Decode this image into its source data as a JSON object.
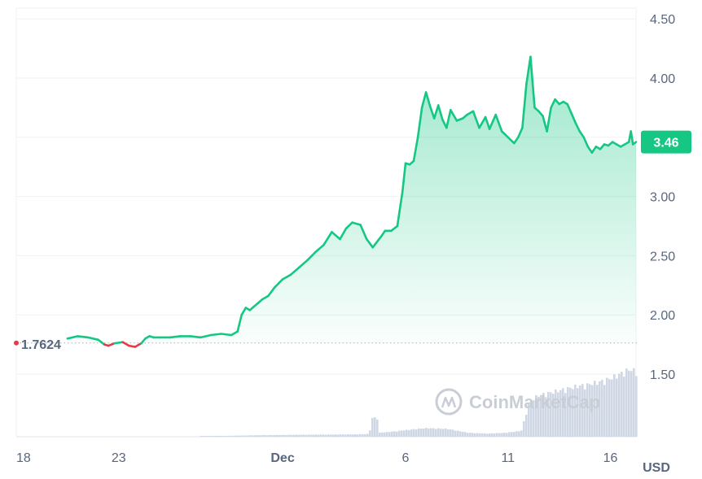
{
  "chart_data": {
    "type": "area",
    "unit_label": "USD",
    "current_price_label": "3.46",
    "start_price_label": "1.7624",
    "start_price": 1.7624,
    "ylim": [
      1.0,
      4.55
    ],
    "y_ticks": [
      "4.50",
      "4.00",
      "3.50",
      "3.00",
      "2.50",
      "2.00",
      "1.50"
    ],
    "y_tick_values": [
      4.5,
      4.0,
      3.5,
      3.0,
      2.5,
      2.0,
      1.5
    ],
    "x_ticks": [
      "18",
      "23",
      "Dec",
      "6",
      "11",
      "16"
    ],
    "x_tick_days": [
      0,
      5,
      13,
      19,
      24,
      29
    ],
    "xlim_days": [
      0,
      30.25
    ],
    "colors": {
      "up": "#16c784",
      "down": "#ea3943",
      "volume": "#cfd6e4",
      "grid": "#eff2f5"
    },
    "watermark": "CoinMarketCap",
    "price_series": {
      "x_days": [
        2.5,
        3.0,
        3.5,
        4.0,
        4.3,
        4.5,
        4.8,
        5.2,
        5.5,
        5.8,
        6.1,
        6.3,
        6.5,
        6.7,
        7.0,
        7.5,
        8.0,
        8.5,
        9.0,
        9.5,
        10.0,
        10.5,
        10.8,
        11.0,
        11.2,
        11.4,
        11.6,
        11.8,
        12.0,
        12.3,
        12.6,
        13.0,
        13.4,
        13.8,
        14.2,
        14.6,
        15.0,
        15.4,
        15.8,
        16.1,
        16.4,
        16.8,
        17.1,
        17.4,
        17.8,
        18.0,
        18.3,
        18.6,
        18.85,
        19.0,
        19.2,
        19.4,
        19.6,
        19.8,
        20.0,
        20.2,
        20.4,
        20.6,
        20.8,
        21.0,
        21.2,
        21.5,
        21.8,
        22.0,
        22.3,
        22.6,
        22.9,
        23.1,
        23.4,
        23.7,
        24.0,
        24.3,
        24.5,
        24.7,
        24.9,
        25.1,
        25.3,
        25.5,
        25.7,
        25.9,
        26.1,
        26.3,
        26.5,
        26.7,
        26.9,
        27.1,
        27.3,
        27.5,
        27.7,
        27.9,
        28.1,
        28.3,
        28.5,
        28.7,
        28.9,
        29.1,
        29.3,
        29.5,
        29.7,
        29.9,
        30.0,
        30.1,
        30.25
      ],
      "values": [
        1.8,
        1.82,
        1.81,
        1.79,
        1.75,
        1.74,
        1.76,
        1.77,
        1.74,
        1.73,
        1.76,
        1.8,
        1.82,
        1.81,
        1.81,
        1.81,
        1.82,
        1.82,
        1.81,
        1.83,
        1.84,
        1.83,
        1.86,
        2.0,
        2.06,
        2.04,
        2.07,
        2.1,
        2.13,
        2.16,
        2.23,
        2.3,
        2.34,
        2.4,
        2.46,
        2.53,
        2.59,
        2.7,
        2.64,
        2.73,
        2.78,
        2.76,
        2.64,
        2.57,
        2.66,
        2.71,
        2.71,
        2.75,
        3.04,
        3.28,
        3.27,
        3.3,
        3.5,
        3.75,
        3.88,
        3.76,
        3.66,
        3.77,
        3.65,
        3.58,
        3.73,
        3.64,
        3.66,
        3.69,
        3.72,
        3.58,
        3.67,
        3.57,
        3.69,
        3.55,
        3.5,
        3.45,
        3.5,
        3.58,
        3.95,
        4.18,
        3.75,
        3.72,
        3.68,
        3.55,
        3.75,
        3.82,
        3.78,
        3.8,
        3.78,
        3.7,
        3.62,
        3.55,
        3.5,
        3.42,
        3.37,
        3.42,
        3.4,
        3.44,
        3.43,
        3.46,
        3.44,
        3.42,
        3.44,
        3.46,
        3.55,
        3.44,
        3.46
      ]
    },
    "volume_series": {
      "x_days": [
        0,
        8.5,
        10.0,
        12.0,
        14.0,
        16.5,
        17.2,
        17.25,
        17.6,
        17.65,
        18.5,
        19.5,
        20.0,
        21.0,
        22.0,
        23.0,
        23.8,
        24.6,
        25.0,
        25.4,
        25.8,
        26.2,
        26.6,
        27.0,
        27.4,
        27.8,
        28.2,
        28.6,
        29.0,
        29.4,
        29.8,
        30.0,
        30.2,
        30.25
      ],
      "values": [
        0.0,
        0.0,
        0.02,
        0.04,
        0.05,
        0.06,
        0.07,
        0.48,
        0.48,
        0.1,
        0.14,
        0.2,
        0.22,
        0.2,
        0.1,
        0.08,
        0.1,
        0.15,
        0.9,
        1.05,
        1.1,
        1.15,
        1.2,
        1.25,
        1.3,
        1.32,
        1.38,
        1.42,
        1.5,
        1.6,
        1.7,
        1.72,
        1.65,
        1.6
      ],
      "max": 1.8
    }
  }
}
